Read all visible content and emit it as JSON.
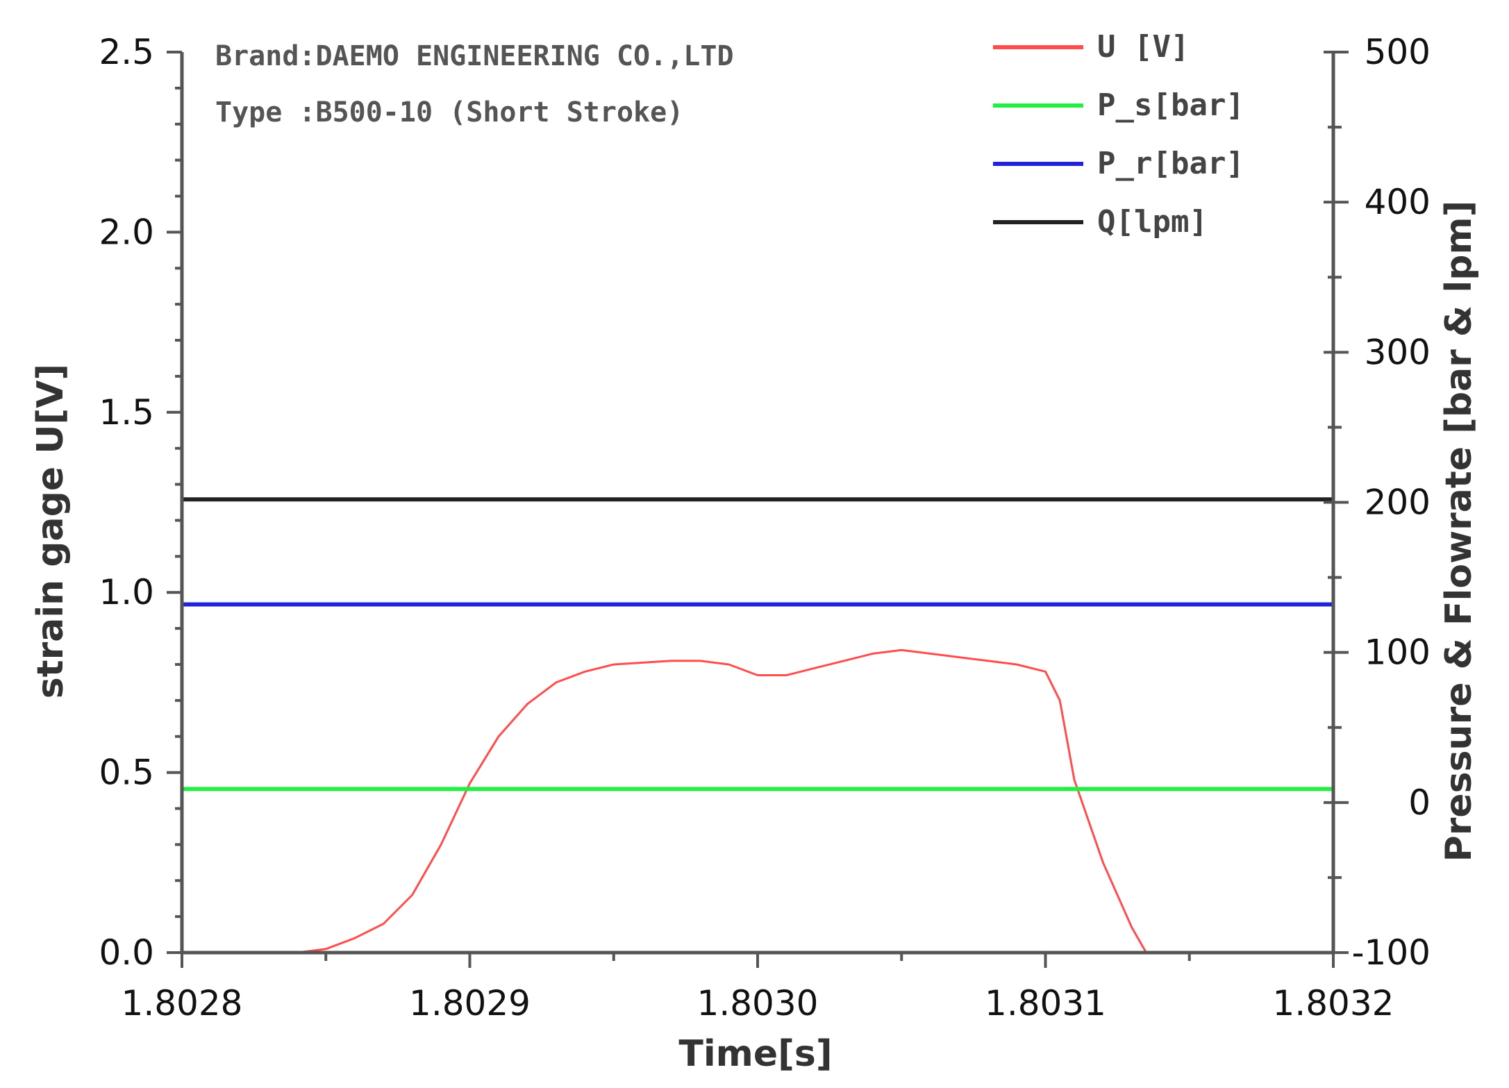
{
  "chart_data": {
    "type": "line",
    "xlabel": "Time[s]",
    "ylabel": "strain gage U[V]",
    "y2label": "Pressure & Flowrate [bar & lpm]",
    "xlim": [
      1.8028,
      1.8032
    ],
    "ylim": [
      0.0,
      2.5
    ],
    "y2lim": [
      -100,
      500
    ],
    "x_ticks": [
      "1.8028",
      "1.8029",
      "1.8030",
      "1.8031",
      "1.8032"
    ],
    "x_tick_values": [
      1.8028,
      1.8029,
      1.803,
      1.8031,
      1.8032
    ],
    "y_ticks": [
      "0.0",
      "0.5",
      "1.0",
      "1.5",
      "2.0",
      "2.5"
    ],
    "y_tick_values": [
      0.0,
      0.5,
      1.0,
      1.5,
      2.0,
      2.5
    ],
    "y2_ticks": [
      "-100",
      "0",
      "100",
      "200",
      "300",
      "400",
      "500"
    ],
    "y2_tick_values": [
      -100,
      0,
      100,
      200,
      300,
      400,
      500
    ],
    "annotations": [
      "Brand:DAEMO ENGINEERING CO.,LTD",
      "Type :B500-10 (Short Stroke)"
    ],
    "legend_position": "top-right",
    "grid": false,
    "series": [
      {
        "name": "U [V]",
        "axis": "left",
        "color": "#ff4d4d",
        "x": [
          1.80284,
          1.80285,
          1.80286,
          1.80287,
          1.80288,
          1.80289,
          1.8029,
          1.80291,
          1.80292,
          1.80293,
          1.80294,
          1.80295,
          1.80296,
          1.80297,
          1.80298,
          1.80299,
          1.803,
          1.80301,
          1.80302,
          1.80303,
          1.80304,
          1.80305,
          1.80306,
          1.80307,
          1.80308,
          1.80309,
          1.8031,
          1.803105,
          1.80311,
          1.80312,
          1.80313,
          1.803135
        ],
        "y": [
          0.0,
          0.01,
          0.04,
          0.08,
          0.16,
          0.3,
          0.47,
          0.6,
          0.69,
          0.75,
          0.78,
          0.8,
          0.805,
          0.81,
          0.81,
          0.8,
          0.77,
          0.77,
          0.79,
          0.81,
          0.83,
          0.84,
          0.83,
          0.82,
          0.81,
          0.8,
          0.78,
          0.7,
          0.48,
          0.25,
          0.07,
          0.0
        ]
      },
      {
        "name": "P_s[bar]",
        "axis": "right",
        "color": "#22ee44",
        "x": [
          1.8028,
          1.8032
        ],
        "y": [
          9,
          9
        ]
      },
      {
        "name": "P_r[bar]",
        "axis": "right",
        "color": "#2222dd",
        "x": [
          1.8028,
          1.8032
        ],
        "y": [
          132,
          132
        ]
      },
      {
        "name": "Q[lpm]",
        "axis": "right",
        "color": "#222222",
        "x": [
          1.8028,
          1.8032
        ],
        "y": [
          202,
          202
        ]
      }
    ]
  }
}
